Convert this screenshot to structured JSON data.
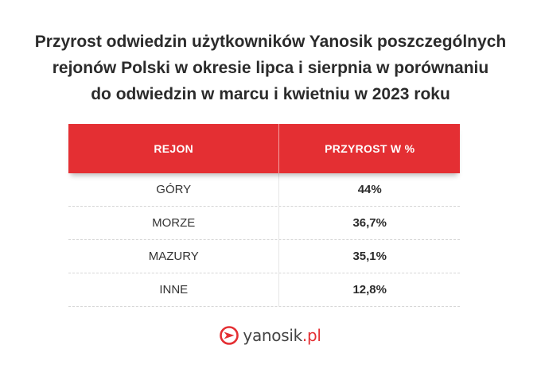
{
  "title_lines": [
    "Przyrost odwiedzin użytkowników Yanosik poszczególnych",
    "rejonów Polski w okresie lipca i sierpnia w porównaniu",
    "do odwiedzin w marcu i kwietniu w 2023 roku"
  ],
  "chart_data": {
    "type": "table",
    "columns": [
      "REJON",
      "PRZYROST W %"
    ],
    "rows": [
      {
        "region": "GÓRY",
        "growth": "44%"
      },
      {
        "region": "MORZE",
        "growth": "36,7%"
      },
      {
        "region": "MAZURY",
        "growth": "35,1%"
      },
      {
        "region": "INNE",
        "growth": "12,8%"
      }
    ]
  },
  "logo": {
    "name": "yanosik",
    "dot": ".",
    "tld": "pl"
  },
  "colors": {
    "header_bg": "#e42f33",
    "header_text": "#ffffff",
    "accent": "#e42f33"
  }
}
